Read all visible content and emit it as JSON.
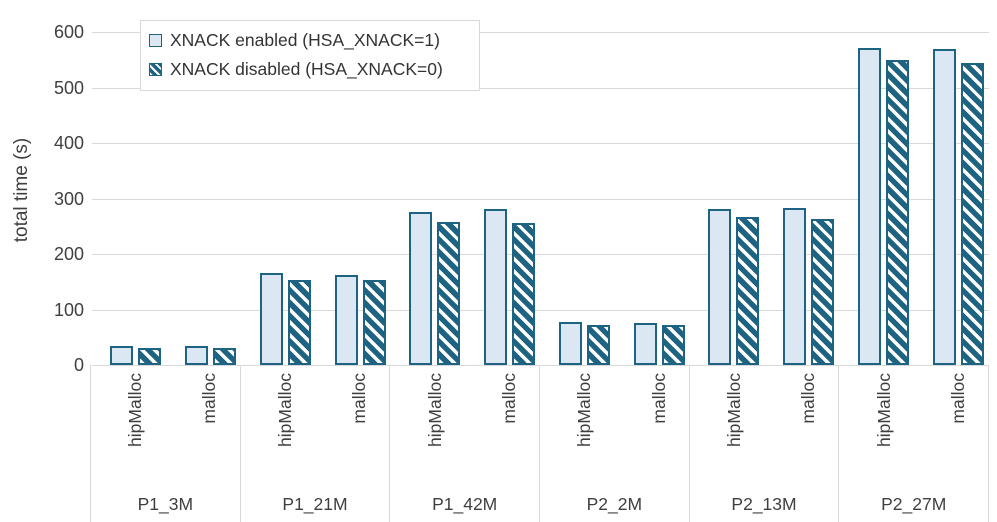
{
  "chart_data": {
    "type": "bar",
    "title": "",
    "ylabel": "total time (s)",
    "ylim": [
      0,
      600
    ],
    "yticks": [
      0,
      100,
      200,
      300,
      400,
      500,
      600
    ],
    "grid": true,
    "legend": {
      "position": "top-left",
      "entries": [
        {
          "label": "XNACK enabled (HSA_XNACK=1)",
          "pattern": "solid"
        },
        {
          "label": "XNACK disabled (HSA_XNACK=0)",
          "pattern": "hatched"
        }
      ]
    },
    "series_names": [
      "XNACK enabled (HSA_XNACK=1)",
      "XNACK disabled (HSA_XNACK=0)"
    ],
    "groups": [
      {
        "label": "P1_3M",
        "bars": [
          {
            "sub": "hipMalloc",
            "enabled": 34,
            "disabled": 31
          },
          {
            "sub": "malloc",
            "enabled": 34,
            "disabled": 31
          }
        ]
      },
      {
        "label": "P1_21M",
        "bars": [
          {
            "sub": "hipMalloc",
            "enabled": 166,
            "disabled": 154
          },
          {
            "sub": "malloc",
            "enabled": 163,
            "disabled": 153
          }
        ]
      },
      {
        "label": "P1_42M",
        "bars": [
          {
            "sub": "hipMalloc",
            "enabled": 276,
            "disabled": 258
          },
          {
            "sub": "malloc",
            "enabled": 281,
            "disabled": 256
          }
        ]
      },
      {
        "label": "P2_2M",
        "bars": [
          {
            "sub": "hipMalloc",
            "enabled": 77,
            "disabled": 73
          },
          {
            "sub": "malloc",
            "enabled": 76,
            "disabled": 72
          }
        ]
      },
      {
        "label": "P2_13M",
        "bars": [
          {
            "sub": "hipMalloc",
            "enabled": 281,
            "disabled": 266
          },
          {
            "sub": "malloc",
            "enabled": 283,
            "disabled": 263
          }
        ]
      },
      {
        "label": "P2_27M",
        "bars": [
          {
            "sub": "hipMalloc",
            "enabled": 572,
            "disabled": 549
          },
          {
            "sub": "malloc",
            "enabled": 570,
            "disabled": 544
          }
        ]
      }
    ]
  },
  "colors": {
    "bar_fill": "#dbe8f4",
    "bar_border": "#1e6482",
    "hatch_bg": "#1e6482",
    "hatch_stripe": "#ffffff",
    "gridline": "#d9d9d9",
    "axis_text": "#3f3f3f",
    "legend_border": "#d9d9d9",
    "background": "#ffffff"
  }
}
